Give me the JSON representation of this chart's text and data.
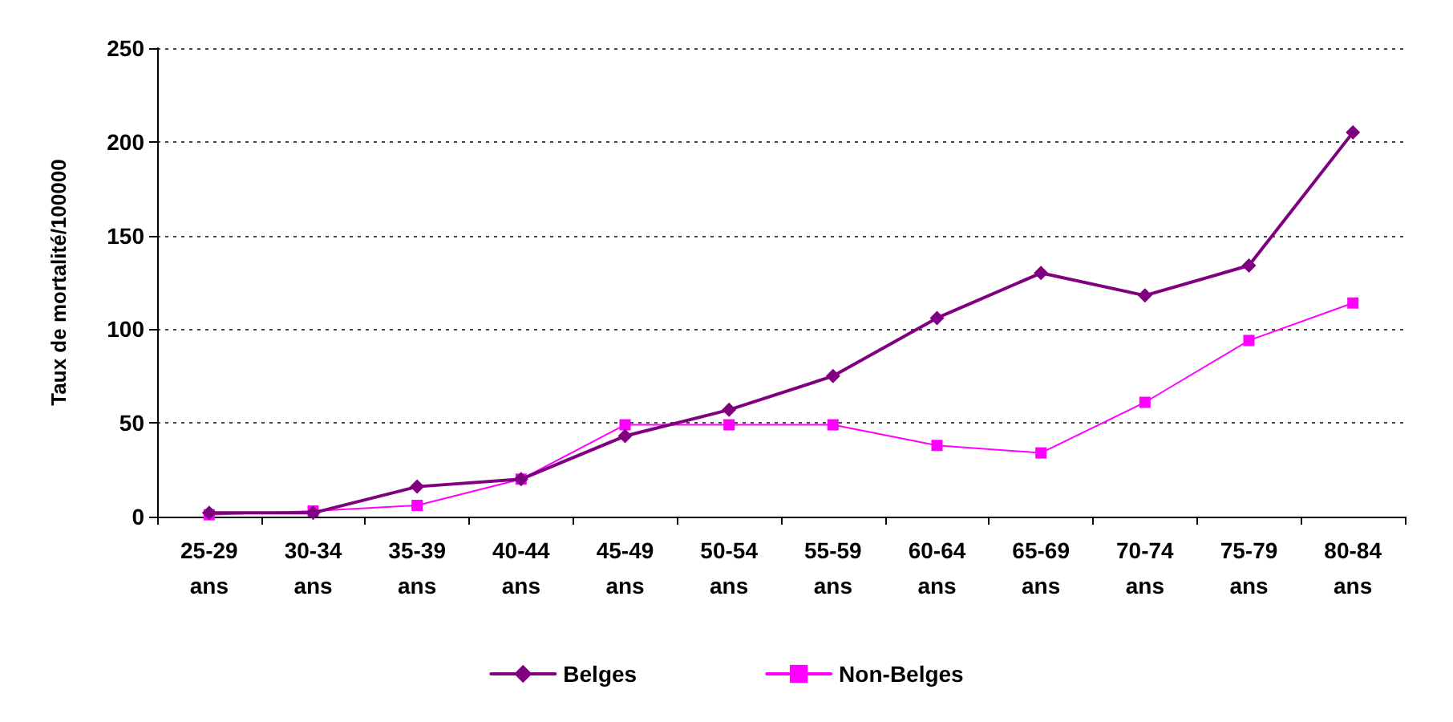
{
  "chart_data": {
    "type": "line",
    "ylabel": "Taux de mortalité/100000",
    "categories": [
      "25-29\nans",
      "30-34\nans",
      "35-39\nans",
      "40-44\nans",
      "45-49\nans",
      "50-54\nans",
      "55-59\nans",
      "60-64\nans",
      "65-69\nans",
      "70-74\nans",
      "75-79\nans",
      "80-84\nans"
    ],
    "series": [
      {
        "name": "Belges",
        "color": "#800080",
        "marker": "diamond",
        "values": [
          2,
          2,
          16,
          20,
          43,
          57,
          75,
          106,
          130,
          118,
          134,
          205
        ]
      },
      {
        "name": "Non-Belges",
        "color": "#ff00ff",
        "marker": "square",
        "values": [
          1,
          3,
          6,
          20,
          49,
          49,
          49,
          38,
          34,
          61,
          94,
          114
        ]
      }
    ],
    "ylim": [
      0,
      250
    ],
    "yticks": [
      0,
      50,
      100,
      150,
      200,
      250
    ],
    "grid": "y",
    "legend": "bottom"
  }
}
